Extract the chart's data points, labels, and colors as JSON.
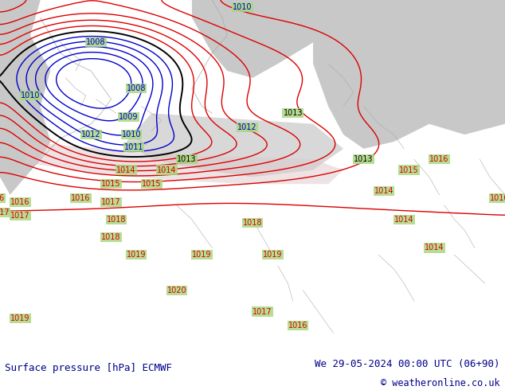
{
  "title_left": "Surface pressure [hPa] ECMWF",
  "title_right": "We 29-05-2024 00:00 UTC (06+90)",
  "copyright": "© weatheronline.co.uk",
  "bg_green": "#a8d880",
  "bg_gray": "#c8c8c8",
  "bg_light_green": "#c0e0a0",
  "pink_color": "#e8c8d0",
  "white_footer": "#ffffff",
  "text_color": "#00008b",
  "isobar_red": "#dd0000",
  "isobar_blue": "#0000cc",
  "isobar_black": "#000000",
  "coast_color": "#aaaaaa",
  "label_fontsize": 7.0,
  "footer_fontsize": 9.0
}
